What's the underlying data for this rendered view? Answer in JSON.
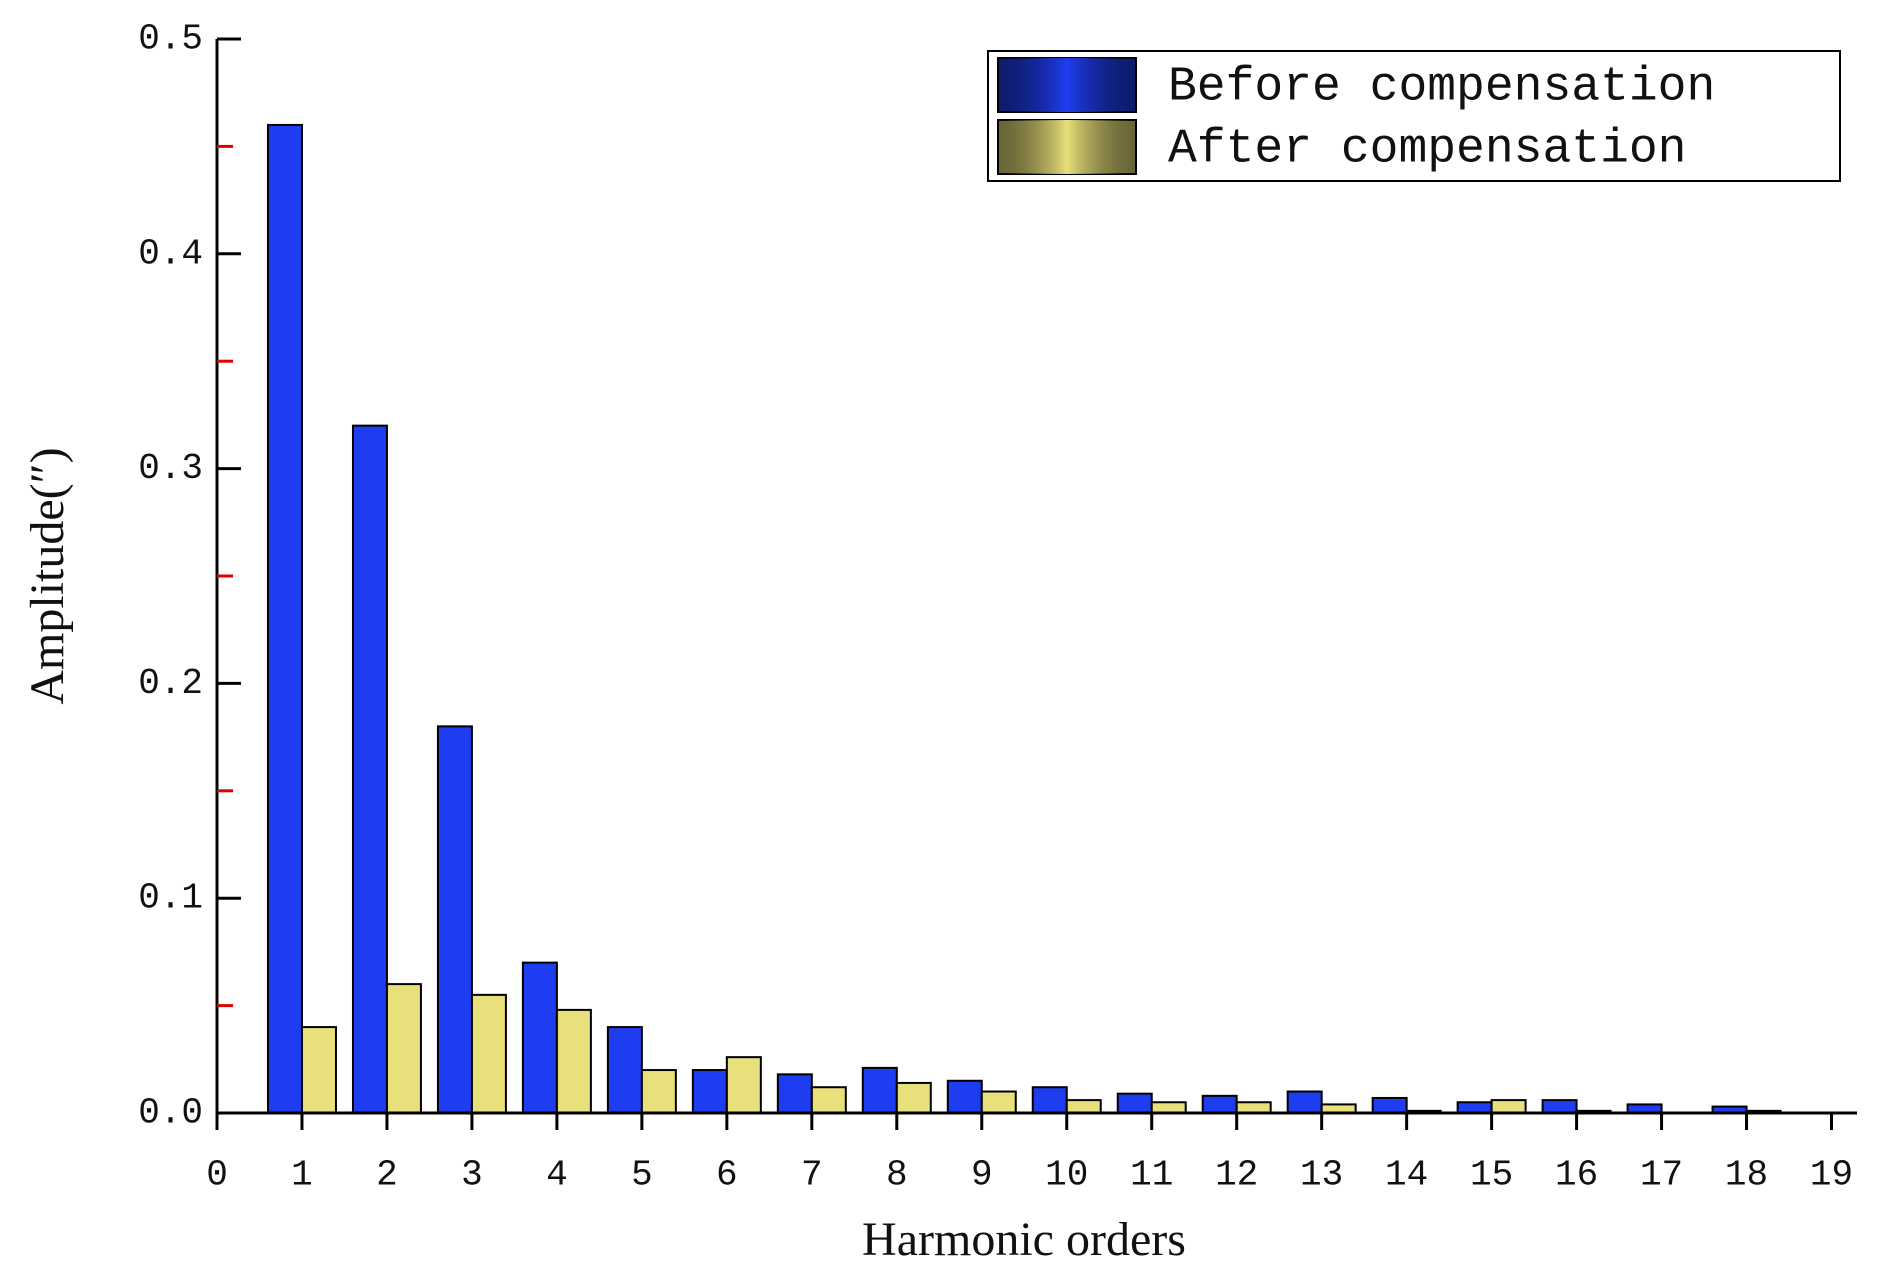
{
  "chart_data": {
    "type": "grouped-bar",
    "x_label": "Harmonic orders",
    "y_label": "Amplitude(″)",
    "x": [
      1,
      2,
      3,
      4,
      5,
      6,
      7,
      8,
      9,
      10,
      11,
      12,
      13,
      14,
      15,
      16,
      17,
      18
    ],
    "series": [
      {
        "name": "Before compensation",
        "color": "#1f3df0",
        "values": [
          0.46,
          0.32,
          0.18,
          0.07,
          0.04,
          0.02,
          0.018,
          0.021,
          0.015,
          0.012,
          0.009,
          0.008,
          0.01,
          0.007,
          0.005,
          0.006,
          0.004,
          0.003
        ]
      },
      {
        "name": "After compensation",
        "color": "#e8e07a",
        "values": [
          0.04,
          0.06,
          0.055,
          0.048,
          0.02,
          0.026,
          0.012,
          0.014,
          0.01,
          0.006,
          0.005,
          0.005,
          0.004,
          0.001,
          0.006,
          0.001,
          0,
          0.001
        ]
      }
    ],
    "xlim": [
      0,
      19.3
    ],
    "xticks": [
      0,
      1,
      2,
      3,
      4,
      5,
      6,
      7,
      8,
      9,
      10,
      11,
      12,
      13,
      14,
      15,
      16,
      17,
      18,
      19
    ],
    "ylim": [
      0,
      0.5
    ],
    "yticks": [
      {
        "value": 0,
        "label": "0.0"
      },
      0.1,
      0.2,
      0.3,
      0.4,
      0.5
    ],
    "yminorticks": [
      0.05,
      0.15,
      0.25,
      0.35,
      0.45
    ],
    "minor_tick_color": "#e00000",
    "legend": "top-right"
  }
}
